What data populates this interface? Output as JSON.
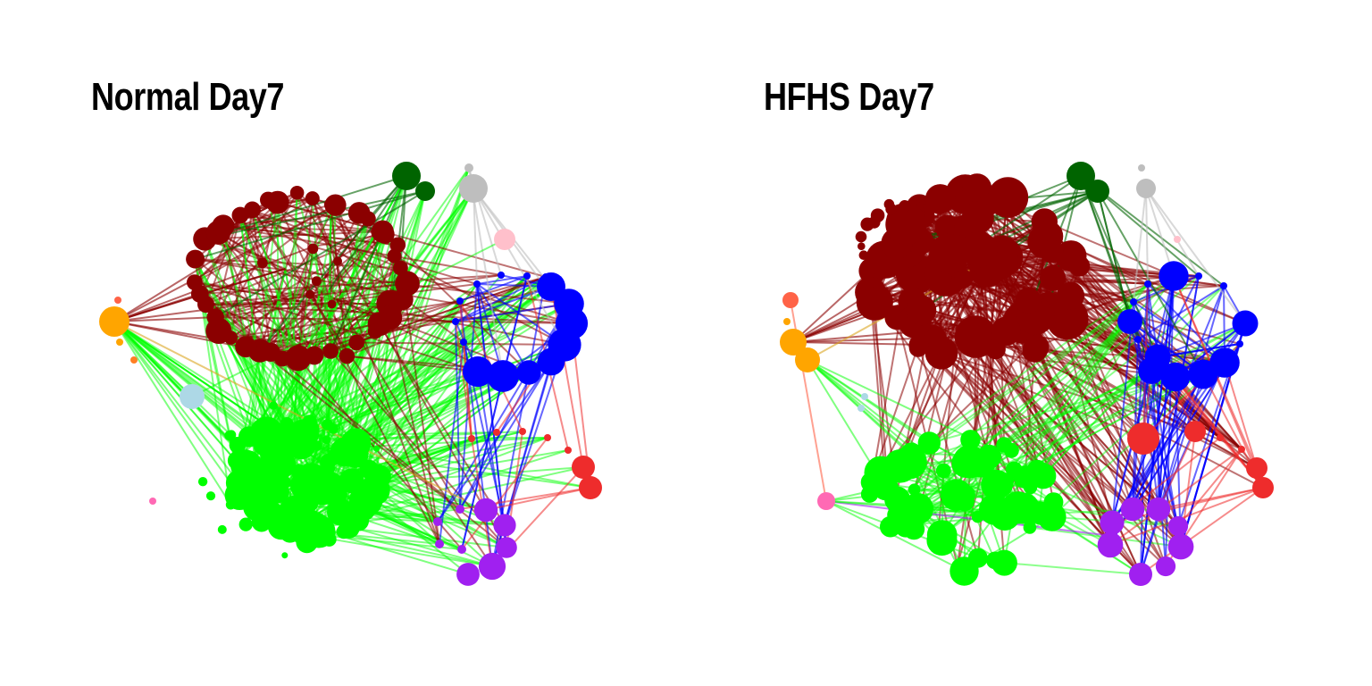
{
  "panels": [
    {
      "title": "Normal Day7"
    },
    {
      "title": "HFHS Day7"
    }
  ],
  "colors": {
    "darkred": "#8B0000",
    "green": "#00FF00",
    "blue": "#0000FF",
    "purple": "#A020F0",
    "red": "#EE2C2C",
    "orange": "#FFA500",
    "lightblue": "#ADD8E6",
    "pink": "#FFC0CB",
    "hotpink": "#FF69B4",
    "darkgreen": "#006400",
    "grey": "#BEBEBE",
    "tomato": "#FF6347",
    "darkorange": "#FF7F24"
  }
}
